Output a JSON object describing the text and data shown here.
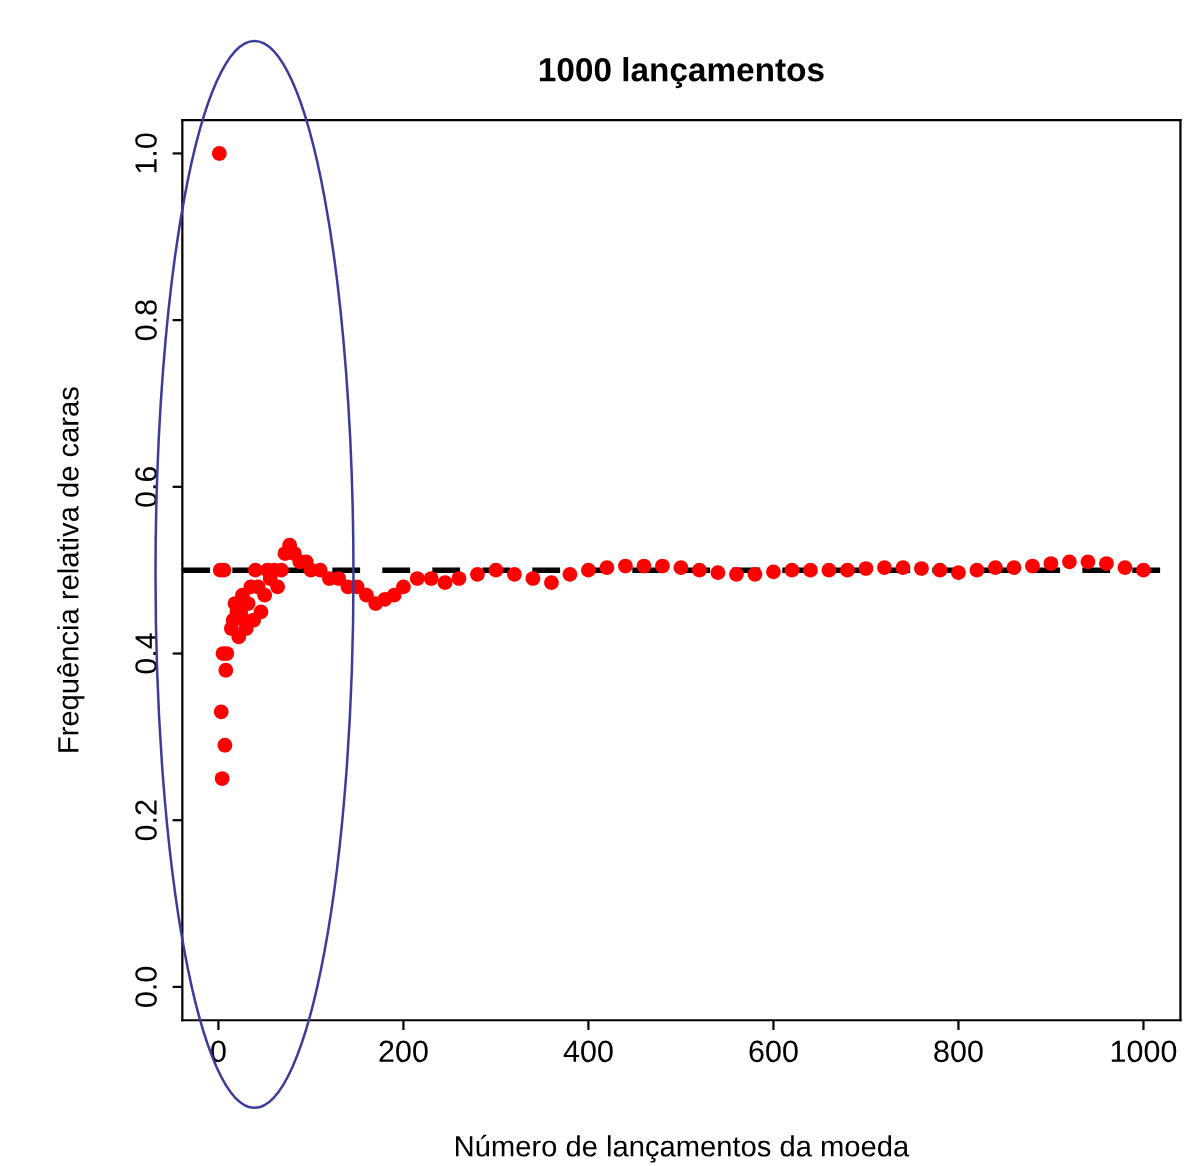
{
  "chart_data": {
    "type": "scatter",
    "title": "1000 lançamentos",
    "xlabel": "Número de lançamentos da moeda",
    "ylabel": "Frequência relativa de caras",
    "x": [
      1,
      2,
      3,
      4,
      5,
      6,
      7,
      8,
      9,
      14,
      16,
      18,
      20,
      22,
      24,
      26,
      28,
      30,
      32,
      35,
      38,
      40,
      43,
      46,
      50,
      53,
      56,
      60,
      64,
      68,
      72,
      77,
      82,
      88,
      95,
      100,
      110,
      120,
      130,
      140,
      150,
      160,
      170,
      180,
      190,
      200,
      215,
      230,
      245,
      260,
      280,
      300,
      320,
      340,
      360,
      380,
      400,
      420,
      440,
      460,
      480,
      500,
      520,
      540,
      560,
      580,
      600,
      620,
      640,
      660,
      680,
      700,
      720,
      740,
      760,
      780,
      800,
      820,
      840,
      860,
      880,
      900,
      920,
      940,
      960,
      980,
      1000
    ],
    "series": [
      {
        "color": "#ff0000",
        "values": [
          1.0,
          0.5,
          0.33,
          0.25,
          0.4,
          0.5,
          0.29,
          0.38,
          0.4,
          0.43,
          0.44,
          0.46,
          0.45,
          0.42,
          0.45,
          0.47,
          0.44,
          0.43,
          0.46,
          0.48,
          0.44,
          0.5,
          0.48,
          0.45,
          0.47,
          0.5,
          0.49,
          0.5,
          0.48,
          0.5,
          0.52,
          0.53,
          0.52,
          0.51,
          0.51,
          0.5,
          0.5,
          0.49,
          0.49,
          0.48,
          0.48,
          0.47,
          0.46,
          0.465,
          0.47,
          0.48,
          0.49,
          0.49,
          0.485,
          0.49,
          0.495,
          0.5,
          0.495,
          0.49,
          0.485,
          0.495,
          0.5,
          0.503,
          0.505,
          0.505,
          0.505,
          0.503,
          0.5,
          0.497,
          0.495,
          0.495,
          0.498,
          0.5,
          0.5,
          0.5,
          0.5,
          0.502,
          0.503,
          0.503,
          0.502,
          0.5,
          0.497,
          0.5,
          0.503,
          0.503,
          0.505,
          0.508,
          0.51,
          0.51,
          0.508,
          0.503,
          0.5
        ]
      }
    ],
    "marker": "circle",
    "xlim": [
      -39,
      1040
    ],
    "ylim": [
      -0.04,
      1.04
    ],
    "xticks": [
      0,
      200,
      400,
      600,
      800,
      1000
    ],
    "yticks": [
      {
        "value": 0,
        "label": "0.0"
      },
      {
        "value": 0.2,
        "label": "0.2"
      },
      {
        "value": 0.4,
        "label": "0.4"
      },
      {
        "value": 0.6,
        "label": "0.6"
      },
      {
        "value": 0.8,
        "label": "0.8"
      },
      {
        "value": 1,
        "label": "1.0"
      }
    ],
    "ref_lines": [
      {
        "axis": "y",
        "value": 0.5,
        "color": "#000000",
        "line_style": "dashed"
      }
    ],
    "grid": false,
    "legend": false
  }
}
